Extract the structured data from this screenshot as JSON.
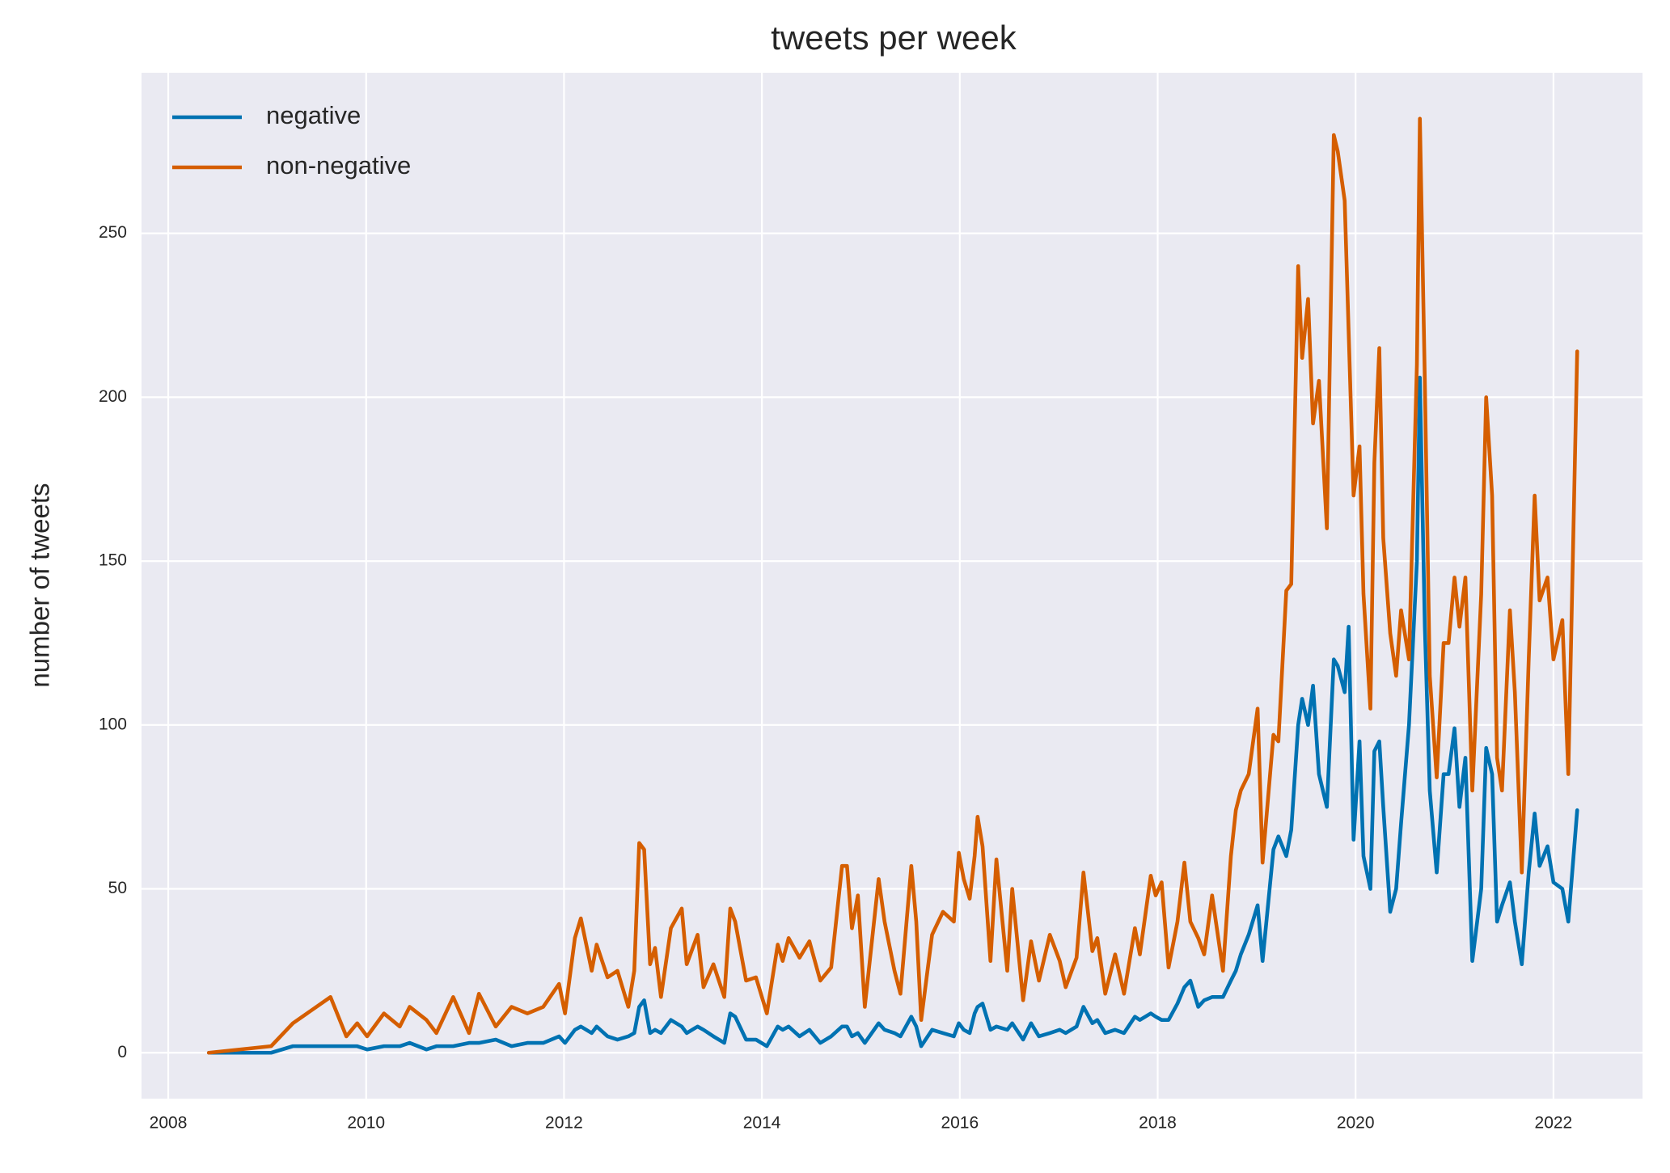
{
  "chart_data": {
    "type": "line",
    "title": "tweets per week",
    "ylabel": "number of tweets",
    "x": [
      2008.41,
      2009.04,
      2009.26,
      2009.64,
      2009.8,
      2009.91,
      2010.01,
      2010.18,
      2010.34,
      2010.44,
      2010.61,
      2010.71,
      2010.88,
      2011.04,
      2011.14,
      2011.31,
      2011.47,
      2011.63,
      2011.79,
      2011.95,
      2012.01,
      2012.11,
      2012.17,
      2012.28,
      2012.33,
      2012.44,
      2012.54,
      2012.65,
      2012.71,
      2012.76,
      2012.81,
      2012.87,
      2012.92,
      2012.98,
      2013.08,
      2013.19,
      2013.24,
      2013.35,
      2013.41,
      2013.51,
      2013.62,
      2013.68,
      2013.73,
      2013.84,
      2013.94,
      2014.05,
      2014.16,
      2014.21,
      2014.27,
      2014.38,
      2014.48,
      2014.59,
      2014.7,
      2014.81,
      2014.86,
      2014.91,
      2014.97,
      2015.04,
      2015.18,
      2015.24,
      2015.34,
      2015.4,
      2015.51,
      2015.56,
      2015.61,
      2015.72,
      2015.83,
      2015.94,
      2015.99,
      2016.04,
      2016.1,
      2016.15,
      2016.18,
      2016.23,
      2016.31,
      2016.37,
      2016.48,
      2016.53,
      2016.64,
      2016.72,
      2016.8,
      2016.91,
      2017.01,
      2017.07,
      2017.18,
      2017.25,
      2017.34,
      2017.39,
      2017.47,
      2017.57,
      2017.66,
      2017.77,
      2017.82,
      2017.93,
      2017.98,
      2018.04,
      2018.11,
      2018.2,
      2018.27,
      2018.33,
      2018.41,
      2018.47,
      2018.55,
      2018.66,
      2018.74,
      2018.79,
      2018.84,
      2018.92,
      2019.01,
      2019.06,
      2019.17,
      2019.22,
      2019.3,
      2019.35,
      2019.42,
      2019.46,
      2019.52,
      2019.57,
      2019.63,
      2019.71,
      2019.78,
      2019.82,
      2019.89,
      2019.93,
      2019.98,
      2020.04,
      2020.08,
      2020.15,
      2020.19,
      2020.24,
      2020.28,
      2020.35,
      2020.41,
      2020.46,
      2020.54,
      2020.62,
      2020.65,
      2020.7,
      2020.75,
      2020.82,
      2020.89,
      2020.94,
      2021.0,
      2021.05,
      2021.11,
      2021.18,
      2021.27,
      2021.32,
      2021.38,
      2021.43,
      2021.48,
      2021.56,
      2021.61,
      2021.68,
      2021.75,
      2021.81,
      2021.86,
      2021.94,
      2022.0,
      2022.09,
      2022.15,
      2022.24
    ],
    "series": [
      {
        "name": "negative",
        "color": "#0072b2",
        "values": [
          0,
          0,
          2,
          2,
          2,
          2,
          1,
          2,
          2,
          3,
          1,
          2,
          2,
          3,
          3,
          4,
          2,
          3,
          3,
          5,
          3,
          7,
          8,
          6,
          8,
          5,
          4,
          5,
          6,
          14,
          16,
          6,
          7,
          6,
          10,
          8,
          6,
          8,
          7,
          5,
          3,
          12,
          11,
          4,
          4,
          2,
          8,
          7,
          8,
          5,
          7,
          3,
          5,
          8,
          8,
          5,
          6,
          3,
          9,
          7,
          6,
          5,
          11,
          8,
          2,
          7,
          6,
          5,
          9,
          7,
          6,
          12,
          14,
          15,
          7,
          8,
          7,
          9,
          4,
          9,
          5,
          6,
          7,
          6,
          8,
          14,
          9,
          10,
          6,
          7,
          6,
          11,
          10,
          12,
          11,
          10,
          10,
          15,
          20,
          22,
          14,
          16,
          17,
          17,
          22,
          25,
          30,
          36,
          45,
          28,
          62,
          66,
          60,
          68,
          100,
          108,
          100,
          112,
          85,
          75,
          120,
          118,
          110,
          130,
          65,
          95,
          60,
          50,
          92,
          95,
          75,
          43,
          50,
          70,
          100,
          150,
          206,
          130,
          80,
          55,
          85,
          85,
          99,
          75,
          90,
          28,
          50,
          93,
          85,
          40,
          45,
          52,
          40,
          27,
          55,
          73,
          57,
          63,
          52,
          50,
          40,
          74
        ]
      },
      {
        "name": "non-negative",
        "color": "#d55e00",
        "values": [
          0,
          2,
          9,
          17,
          5,
          9,
          5,
          12,
          8,
          14,
          10,
          6,
          17,
          6,
          18,
          8,
          14,
          12,
          14,
          21,
          12,
          35,
          41,
          25,
          33,
          23,
          25,
          14,
          25,
          64,
          62,
          27,
          32,
          17,
          38,
          44,
          27,
          36,
          20,
          27,
          17,
          44,
          40,
          22,
          23,
          12,
          33,
          28,
          35,
          29,
          34,
          22,
          26,
          57,
          57,
          38,
          48,
          14,
          53,
          40,
          25,
          18,
          57,
          40,
          10,
          36,
          43,
          40,
          61,
          53,
          47,
          60,
          72,
          63,
          28,
          59,
          25,
          50,
          16,
          34,
          22,
          36,
          28,
          20,
          29,
          55,
          31,
          35,
          18,
          30,
          18,
          38,
          30,
          54,
          48,
          52,
          26,
          40,
          58,
          40,
          35,
          30,
          48,
          25,
          60,
          74,
          80,
          85,
          105,
          58,
          97,
          95,
          141,
          143,
          240,
          212,
          230,
          192,
          205,
          160,
          280,
          275,
          260,
          220,
          170,
          185,
          140,
          105,
          180,
          215,
          157,
          128,
          115,
          135,
          120,
          210,
          285,
          205,
          115,
          84,
          125,
          125,
          145,
          130,
          145,
          80,
          140,
          200,
          170,
          90,
          80,
          135,
          110,
          55,
          120,
          170,
          138,
          145,
          120,
          132,
          85,
          214
        ]
      }
    ],
    "xlim": [
      2007.73,
      2022.9
    ],
    "xticks": [
      2008,
      2010,
      2012,
      2014,
      2016,
      2018,
      2020,
      2022
    ],
    "ylim": [
      -14,
      299
    ],
    "yticks": [
      0,
      50,
      100,
      150,
      200,
      250
    ],
    "grid": true,
    "legend": "upper left"
  }
}
